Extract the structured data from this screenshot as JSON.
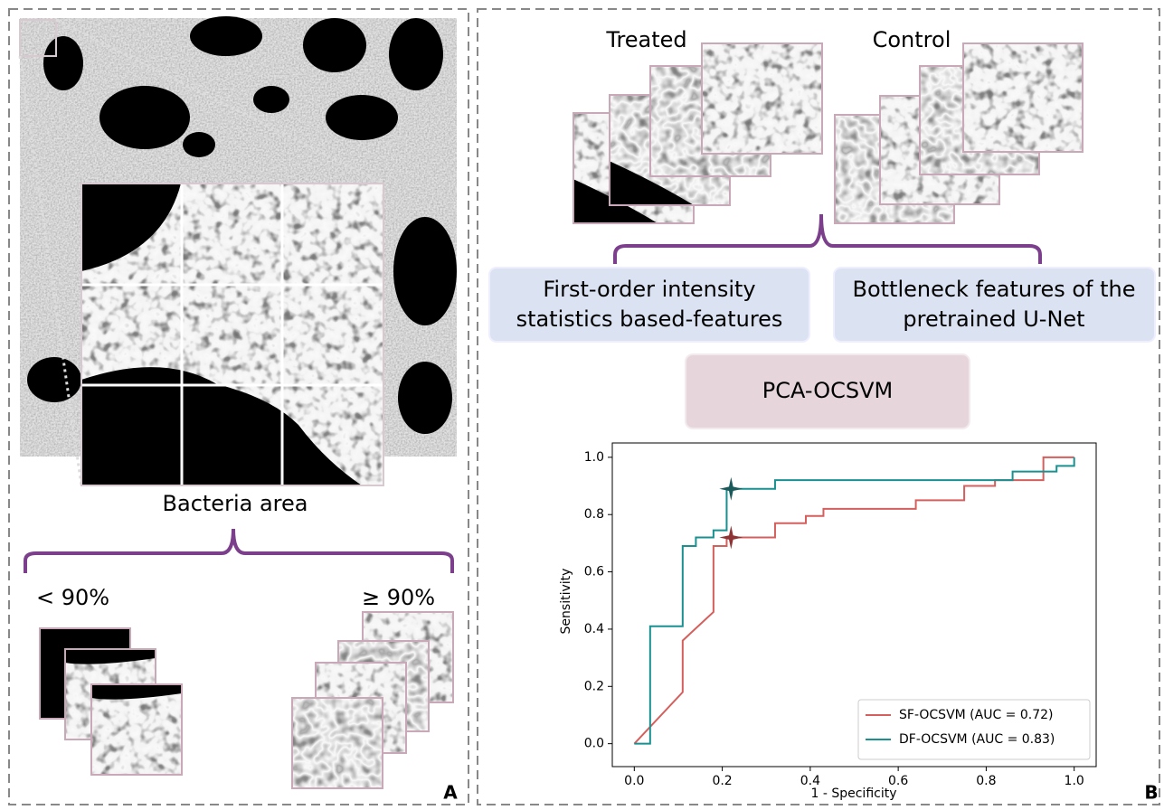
{
  "panel_a": {
    "label": "A",
    "caption": "Bacteria area",
    "low": "< 90%",
    "high": "≥ 90%"
  },
  "panel_b": {
    "label": "B",
    "treated": "Treated",
    "control": "Control",
    "feature_boxes": [
      [
        "First-order intensity",
        "statistics based-features"
      ],
      [
        "Bottleneck features of the",
        "pretrained U-Net"
      ]
    ],
    "model": "PCA-OCSVM"
  },
  "chart_data": {
    "type": "line",
    "xlabel": "1 - Specificity",
    "ylabel": "Sensitivity",
    "xlim": [
      -0.05,
      1.05
    ],
    "ylim": [
      -0.08,
      1.05
    ],
    "xticks": [
      {
        "value": 0,
        "label": "0.0"
      },
      {
        "value": 0.2,
        "label": "0.2"
      },
      {
        "value": 0.4,
        "label": "0.4"
      },
      {
        "value": 0.6,
        "label": "0.6"
      },
      {
        "value": 0.8,
        "label": "0.8"
      },
      {
        "value": 1,
        "label": "1.0"
      }
    ],
    "yticks": [
      {
        "value": 0,
        "label": "0.0"
      },
      {
        "value": 0.2,
        "label": "0.2"
      },
      {
        "value": 0.4,
        "label": "0.4"
      },
      {
        "value": 0.6,
        "label": "0.6"
      },
      {
        "value": 0.8,
        "label": "0.8"
      },
      {
        "value": 1,
        "label": "1.0"
      }
    ],
    "legend": "lower right",
    "series": [
      {
        "name": "SF-OCSVM (AUC = 0.72)",
        "color": "#d45f5c",
        "marker_color": "#8e3434",
        "x": [
          0,
          0.11,
          0.11,
          0.18,
          0.18,
          0.21,
          0.21,
          0.32,
          0.32,
          0.39,
          0.39,
          0.43,
          0.43,
          0.64,
          0.64,
          0.75,
          0.75,
          0.82,
          0.82,
          0.93,
          0.93,
          1
        ],
        "values": [
          0,
          0.18,
          0.36,
          0.46,
          0.69,
          0.69,
          0.72,
          0.72,
          0.77,
          0.77,
          0.795,
          0.795,
          0.82,
          0.82,
          0.85,
          0.85,
          0.9,
          0.9,
          0.92,
          0.92,
          1,
          1
        ],
        "point": {
          "x": 0.22,
          "y": 0.72
        }
      },
      {
        "name": "DF-OCSVM (AUC = 0.83)",
        "color": "#1a9090",
        "marker_color": "#1b5a5a",
        "x": [
          0,
          0.036,
          0.036,
          0.11,
          0.11,
          0.14,
          0.14,
          0.18,
          0.18,
          0.21,
          0.21,
          0.32,
          0.32,
          0.86,
          0.86,
          0.96,
          0.96,
          1,
          1
        ],
        "values": [
          0,
          0,
          0.41,
          0.41,
          0.69,
          0.69,
          0.72,
          0.72,
          0.745,
          0.745,
          0.89,
          0.89,
          0.92,
          0.92,
          0.95,
          0.95,
          0.97,
          0.97,
          1
        ],
        "point": {
          "x": 0.22,
          "y": 0.89
        }
      }
    ]
  }
}
